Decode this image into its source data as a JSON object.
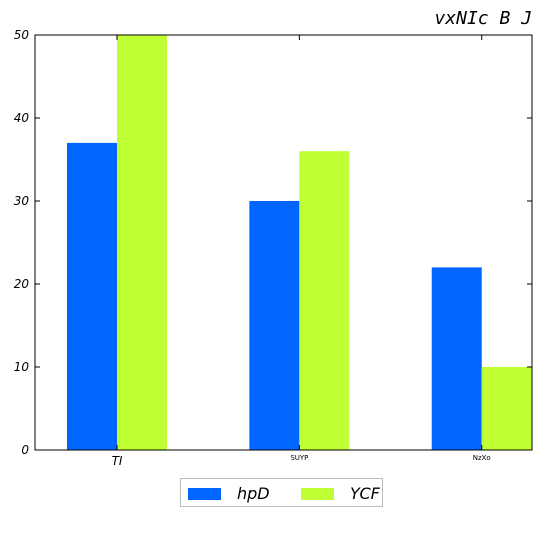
{
  "chart_data": {
    "type": "bar",
    "title": "vxNIc B J",
    "xlabel": "",
    "ylabel": "",
    "categories": [
      "TI",
      "SUYP",
      "NzXo"
    ],
    "series": [
      {
        "name": "hpD",
        "values": [
          37,
          30,
          22
        ],
        "color": "#0066ff"
      },
      {
        "name": "YCF",
        "values": [
          50,
          36,
          10
        ],
        "color": "#c0ff33"
      }
    ],
    "ylim": [
      0,
      50
    ],
    "yticks": [
      0,
      10,
      20,
      30,
      40,
      50
    ],
    "grid": false,
    "legend_position": "bottom-center"
  }
}
